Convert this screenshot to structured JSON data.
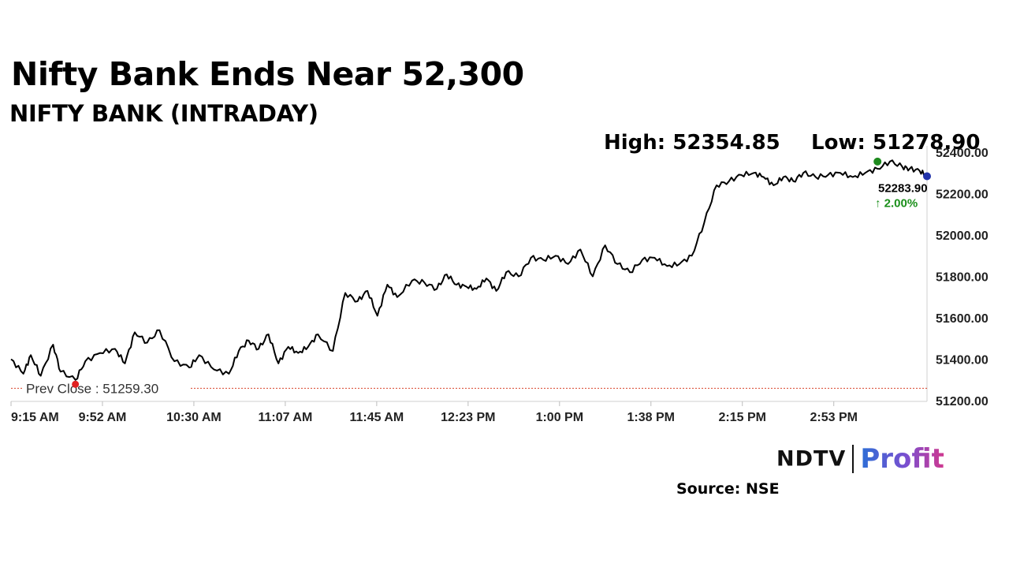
{
  "header": {
    "title": "Nifty Bank Ends Near 52,300",
    "subtitle": "NIFTY BANK (INTRADAY)"
  },
  "stats": {
    "high": "High: 52354.85",
    "low": "Low: 51278.90"
  },
  "chart_data": {
    "type": "line",
    "title": "NIFTY BANK (INTRADAY)",
    "xlabel": "",
    "ylabel": "",
    "x_ticks": [
      "9:15 AM",
      "9:52 AM",
      "10:30 AM",
      "11:07 AM",
      "11:45 AM",
      "12:23 PM",
      "1:00 PM",
      "1:38 PM",
      "2:15 PM",
      "2:53 PM"
    ],
    "y_ticks": [
      51200,
      51400,
      51600,
      51800,
      52000,
      52200,
      52400
    ],
    "y_tick_labels": [
      "51200.00",
      "51400.00",
      "51600.00",
      "51800.00",
      "52000.00",
      "52200.00",
      "52400.00"
    ],
    "ylim": [
      51200,
      52400
    ],
    "xlim": [
      0,
      370
    ],
    "grid": false,
    "series": [
      {
        "color": "#000000",
        "x": [
          0,
          5,
          8,
          12,
          17,
          20,
          26,
          30,
          36,
          42,
          46,
          50,
          55,
          60,
          66,
          72,
          76,
          82,
          88,
          92,
          96,
          100,
          104,
          108,
          112,
          116,
          120,
          124,
          130,
          135,
          140,
          144,
          148,
          152,
          156,
          162,
          167,
          172,
          176,
          180,
          184,
          188,
          192,
          196,
          200,
          205,
          210,
          215,
          220,
          225,
          230,
          235,
          240,
          245,
          250,
          255,
          260,
          265,
          270,
          275,
          280,
          285,
          290,
          295,
          300,
          304,
          308,
          312,
          316,
          320,
          325,
          330,
          335,
          340,
          345,
          350,
          355,
          360,
          363,
          367,
          370
        ],
        "y": [
          51400,
          51330,
          51420,
          51320,
          51470,
          51340,
          51300,
          51390,
          51430,
          51450,
          51380,
          51530,
          51480,
          51540,
          51390,
          51360,
          51420,
          51350,
          51330,
          51440,
          51490,
          51450,
          51520,
          51380,
          51460,
          51430,
          51460,
          51520,
          51440,
          51720,
          51680,
          51730,
          51610,
          51760,
          51700,
          51780,
          51770,
          51740,
          51810,
          51760,
          51750,
          51740,
          51790,
          51730,
          51820,
          51800,
          51890,
          51880,
          51900,
          51860,
          51930,
          51800,
          51950,
          51860,
          51820,
          51880,
          51890,
          51850,
          51860,
          51900,
          52060,
          52240,
          52260,
          52290,
          52300,
          52280,
          52240,
          52280,
          52260,
          52300,
          52280,
          52290,
          52300,
          52280,
          52300,
          52320,
          52355,
          52330,
          52320,
          52310,
          52283.9
        ]
      }
    ],
    "prev_close": 51259.3,
    "prev_close_label": "Prev Close : 51259.30",
    "low_point": {
      "x": 26,
      "y": 51278.9
    },
    "high_point": {
      "x": 350,
      "y": 52354.85
    },
    "last_value_label": "52283.90",
    "change_label": "↑ 2.00%",
    "colors": {
      "line": "#000000",
      "prev_close": "#d9442b",
      "low_marker": "#e02020",
      "high_marker": "#1e8a1e",
      "last_marker": "#2233aa",
      "change": "#1a8f1a",
      "axis_text": "#222222"
    }
  },
  "footer": {
    "logo_left": "NDTV",
    "logo_right": "Profit",
    "source": "Source: NSE"
  }
}
